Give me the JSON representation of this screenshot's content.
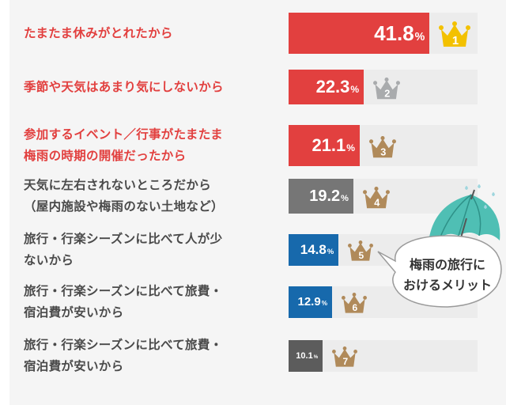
{
  "chart_data": {
    "type": "bar",
    "orientation": "horizontal",
    "categories": [
      [
        "たまたま休みがとれたから"
      ],
      [
        "季節や天気はあまり気にしないから"
      ],
      [
        "参加するイベント／行事がたまたま",
        "梅雨の時期の開催だったから"
      ],
      [
        "天気に左右されないところだから",
        "（屋内施設や梅雨のない土地など）"
      ],
      [
        "旅行・行楽シーズンに比べて人が少",
        "ないから"
      ],
      [
        "旅行・行楽シーズンに比べて旅費・",
        "宿泊費が安いから"
      ],
      [
        "旅行・行楽シーズンに比べて旅費・",
        "宿泊費が安いから"
      ]
    ],
    "values": [
      41.8,
      22.3,
      21.1,
      19.2,
      14.8,
      12.9,
      10.1
    ],
    "value_labels": [
      "41.8",
      "22.3",
      "21.1",
      "19.2",
      "14.8",
      "12.9",
      "10.1"
    ],
    "unit": "%",
    "ranks": [
      "1",
      "2",
      "3",
      "4",
      "5",
      "6",
      "7"
    ],
    "xlim": [
      0,
      56
    ],
    "grid": false,
    "legend": "none",
    "annotation": [
      "梅雨の旅行に",
      "おけるメリット"
    ]
  },
  "colors": {
    "red": "#e2403f",
    "gray": "#767676",
    "blue": "#1769ac",
    "darkgray": "#5c5c5c",
    "track": "#ececec",
    "label_red": "#e2403f",
    "label_gray": "#4a4a4a",
    "crown_gold": "#f3c100",
    "crown_silver": "#a9abad",
    "crown_bronze": "#b08a5a",
    "umbrella": "#4fbfb4"
  },
  "icons": [
    "crown-icon",
    "umbrella-icon",
    "speech-bubble"
  ]
}
